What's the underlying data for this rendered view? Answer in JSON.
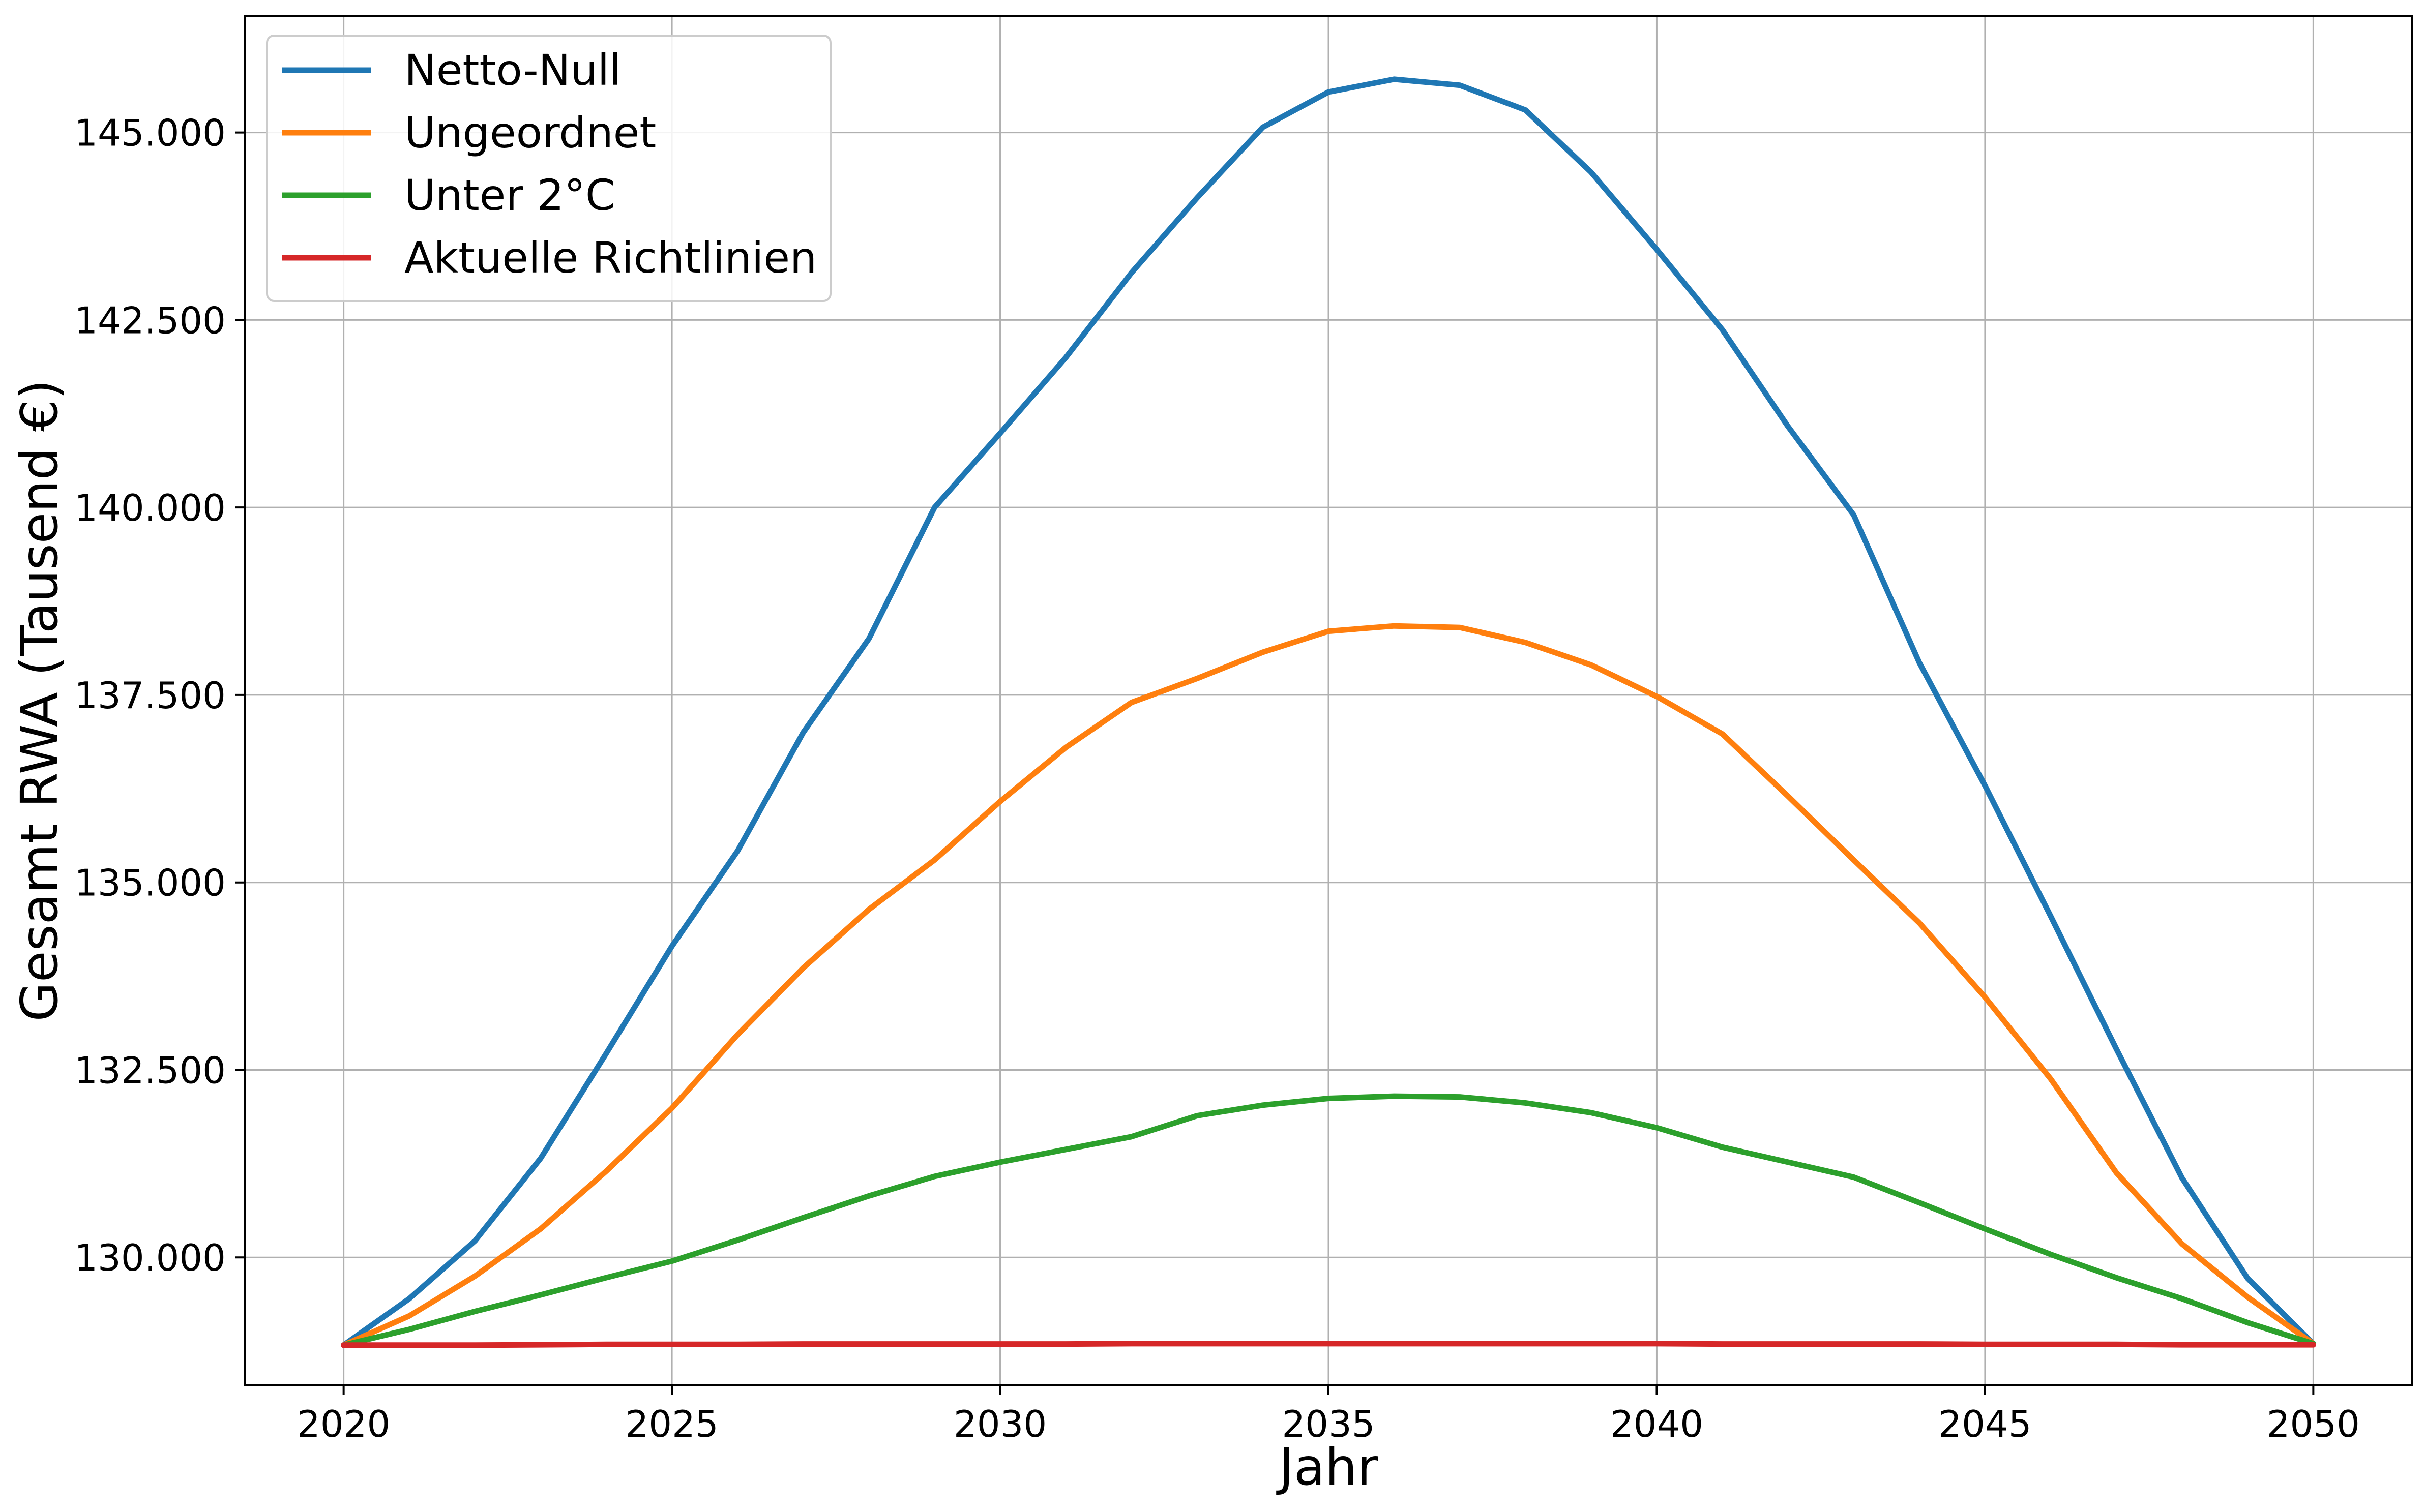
{
  "chart_data": {
    "type": "line",
    "title": "",
    "xlabel": "Jahr",
    "ylabel": "Gesamt RWA (Tausend €)",
    "xlim": [
      2018.5,
      2051.5
    ],
    "ylim": [
      128300,
      146550
    ],
    "x_ticks": [
      2020,
      2025,
      2030,
      2035,
      2040,
      2045,
      2050
    ],
    "x_tick_labels": [
      "2020",
      "2025",
      "2030",
      "2035",
      "2040",
      "2045",
      "2050"
    ],
    "y_ticks": [
      130000,
      132500,
      135000,
      137500,
      140000,
      142500,
      145000
    ],
    "y_tick_labels": [
      "130.000",
      "132.500",
      "135.000",
      "137.500",
      "140.000",
      "142.500",
      "145.000"
    ],
    "grid": true,
    "legend_position": "top-left",
    "x": [
      2020,
      2021,
      2022,
      2023,
      2024,
      2025,
      2026,
      2027,
      2028,
      2029,
      2030,
      2031,
      2032,
      2033,
      2034,
      2035,
      2036,
      2037,
      2038,
      2039,
      2040,
      2041,
      2042,
      2043,
      2044,
      2045,
      2046,
      2047,
      2048,
      2049,
      2050
    ],
    "series": [
      {
        "name": "Netto-Null",
        "color": "#1f77b4",
        "values": [
          128830,
          129450,
          130220,
          131320,
          132720,
          134150,
          135420,
          137000,
          138250,
          140000,
          140990,
          142000,
          143130,
          144130,
          145070,
          145540,
          145710,
          145630,
          145300,
          144470,
          143440,
          142370,
          141080,
          139900,
          137930,
          136290,
          134550,
          132780,
          131060,
          129720,
          128850
        ]
      },
      {
        "name": "Ungeordnet",
        "color": "#ff7f0e",
        "values": [
          128830,
          129220,
          129750,
          130380,
          131150,
          131990,
          132970,
          133860,
          134640,
          135300,
          136080,
          136800,
          137400,
          137720,
          138070,
          138350,
          138420,
          138400,
          138200,
          137900,
          137480,
          136980,
          136150,
          135300,
          134460,
          133470,
          132380,
          131130,
          130180,
          129470,
          128850
        ]
      },
      {
        "name": "Unter 2°C",
        "color": "#2ca02c",
        "values": [
          128830,
          129040,
          129280,
          129500,
          129730,
          129950,
          130230,
          130530,
          130820,
          131080,
          131270,
          131440,
          131610,
          131890,
          132030,
          132120,
          132150,
          132140,
          132060,
          131930,
          131730,
          131470,
          131270,
          131070,
          130730,
          130380,
          130040,
          129730,
          129450,
          129130,
          128850
        ]
      },
      {
        "name": "Aktuelle Richtlinien",
        "color": "#d62728",
        "values": [
          128830,
          128830,
          128830,
          128835,
          128840,
          128840,
          128840,
          128845,
          128845,
          128845,
          128845,
          128845,
          128850,
          128850,
          128850,
          128850,
          128850,
          128850,
          128850,
          128850,
          128850,
          128845,
          128845,
          128845,
          128845,
          128840,
          128840,
          128840,
          128835,
          128835,
          128835
        ]
      }
    ]
  }
}
